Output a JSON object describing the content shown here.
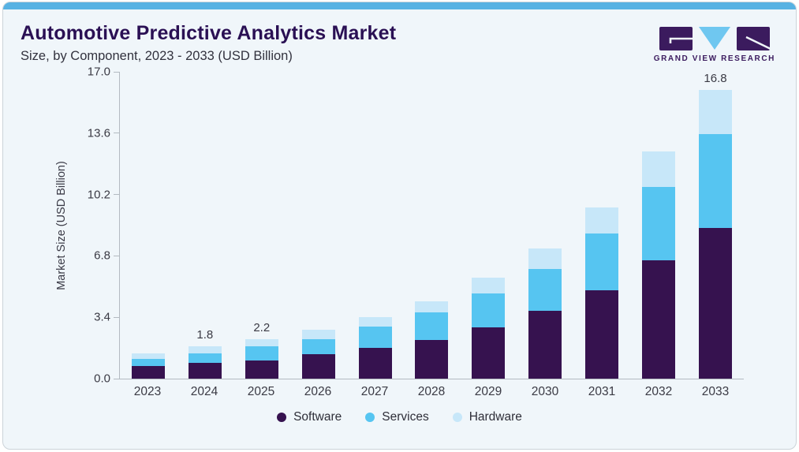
{
  "page": {
    "title": "Automotive Predictive Analytics Market",
    "subtitle": "Size, by Component, 2023 - 2033 (USD Billion)"
  },
  "logo": {
    "text": "GRAND VIEW RESEARCH",
    "block_color": "#3b1b5e",
    "triangle_color": "#6fc7f0"
  },
  "colors": {
    "accent_strip": "#57b2e3",
    "title_purple": "#2a1054",
    "axis_line": "#b3bac1",
    "card_background": "#f0f6fa"
  },
  "chart_data": {
    "type": "bar",
    "stacked": true,
    "title": "Automotive Predictive Analytics Market Size, by Component, 2023 - 2033 (USD Billion)",
    "xlabel": "",
    "ylabel": "Market Size (USD Billion)",
    "ylim": [
      0,
      17.0
    ],
    "yticks": [
      0.0,
      3.4,
      6.8,
      10.2,
      13.6,
      17.0
    ],
    "ytick_labels": [
      "0.0",
      "3.4",
      "6.8",
      "10.2",
      "13.6",
      "17.0"
    ],
    "grid": false,
    "legend_position": "bottom",
    "categories": [
      "2023",
      "2024",
      "2025",
      "2026",
      "2027",
      "2028",
      "2029",
      "2030",
      "2031",
      "2032",
      "2033"
    ],
    "series": [
      {
        "name": "Software",
        "color": "#36124f",
        "values": [
          0.68,
          0.87,
          1.02,
          1.34,
          1.7,
          2.15,
          2.84,
          3.74,
          4.91,
          6.54,
          8.75
        ]
      },
      {
        "name": "Services",
        "color": "#56c5f1",
        "values": [
          0.42,
          0.55,
          0.79,
          0.86,
          1.17,
          1.51,
          1.87,
          2.33,
          3.12,
          4.06,
          5.5
        ]
      },
      {
        "name": "Hardware",
        "color": "#c7e7f9",
        "values": [
          0.3,
          0.38,
          0.39,
          0.5,
          0.53,
          0.64,
          0.89,
          1.13,
          1.47,
          2.0,
          2.55
        ]
      }
    ],
    "totals": [
      1.4,
      1.8,
      2.2,
      2.7,
      3.4,
      4.3,
      5.6,
      7.2,
      9.5,
      12.6,
      16.8
    ],
    "bar_labels": [
      "",
      "1.8",
      "2.2",
      "",
      "",
      "",
      "",
      "",
      "",
      "",
      "16.8"
    ]
  },
  "legend": {
    "items": [
      {
        "label": "Software",
        "color": "#36124f"
      },
      {
        "label": "Services",
        "color": "#56c5f1"
      },
      {
        "label": "Hardware",
        "color": "#c7e7f9"
      }
    ]
  }
}
